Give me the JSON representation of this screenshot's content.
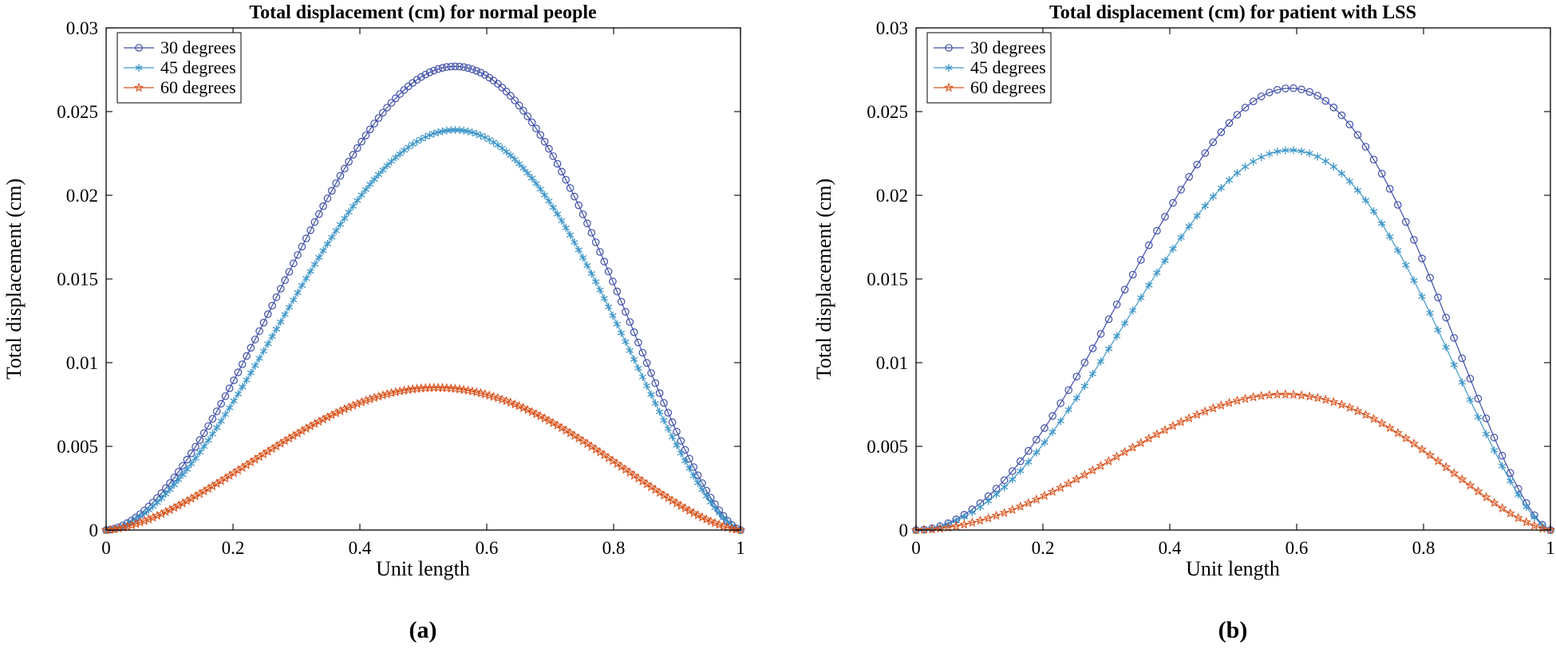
{
  "chart_data": [
    {
      "type": "line",
      "panel_label": "(a)",
      "title": "Total displacement (cm) for normal people",
      "xlabel": "Unit length",
      "ylabel": "Total displacement (cm)",
      "xlim": [
        0,
        1
      ],
      "ylim": [
        0,
        0.03
      ],
      "xticks": [
        "0",
        "0.2",
        "0.4",
        "0.6",
        "0.8",
        "1"
      ],
      "yticks": [
        "0",
        "0.005",
        "0.01",
        "0.015",
        "0.02",
        "0.025",
        "0.03"
      ],
      "legend_position": "top-left",
      "n_points": 150,
      "series": [
        {
          "name": "30 degrees",
          "color": "#3f4fa8",
          "marker": "circle",
          "peak_x": 0.55,
          "peak_y": 0.0277
        },
        {
          "name": "45 degrees",
          "color": "#3f97c9",
          "marker": "asterisk",
          "peak_x": 0.55,
          "peak_y": 0.0239
        },
        {
          "name": "60 degrees",
          "color": "#d9541e",
          "marker": "star",
          "peak_x": 0.52,
          "peak_y": 0.0085
        }
      ]
    },
    {
      "type": "line",
      "panel_label": "(b)",
      "title": "Total displacement (cm) for patient with LSS",
      "xlabel": "Unit length",
      "ylabel": "Total displacement (cm)",
      "xlim": [
        0,
        1
      ],
      "ylim": [
        0,
        0.03
      ],
      "xticks": [
        "0",
        "0.2",
        "0.4",
        "0.6",
        "0.8",
        "1"
      ],
      "yticks": [
        "0",
        "0.005",
        "0.01",
        "0.015",
        "0.02",
        "0.025",
        "0.03"
      ],
      "legend_position": "top-left",
      "n_points": 80,
      "series": [
        {
          "name": "30 degrees",
          "color": "#3f4fa8",
          "marker": "circle",
          "peak_x": 0.59,
          "peak_y": 0.0264
        },
        {
          "name": "45 degrees",
          "color": "#3f97c9",
          "marker": "asterisk",
          "peak_x": 0.59,
          "peak_y": 0.0227
        },
        {
          "name": "60 degrees",
          "color": "#d9541e",
          "marker": "star",
          "peak_x": 0.58,
          "peak_y": 0.0081
        }
      ]
    }
  ]
}
